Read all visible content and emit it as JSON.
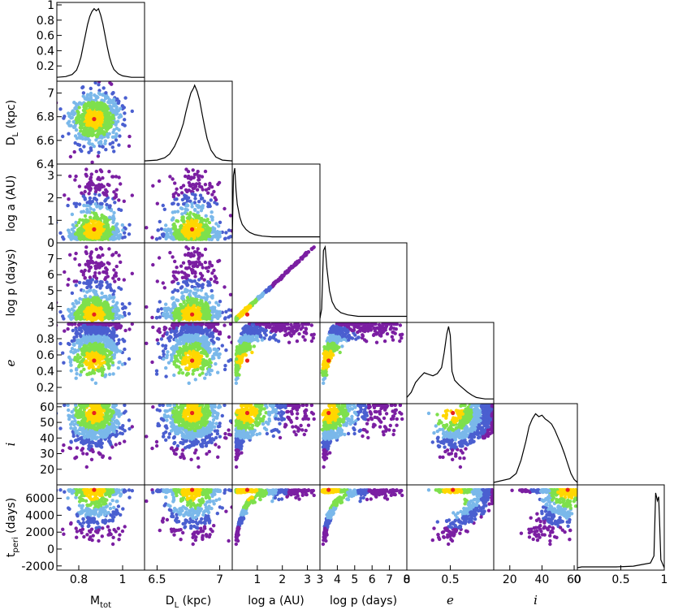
{
  "chart_data": {
    "type": "scatter",
    "layout": "corner",
    "parameters": [
      {
        "key": "mtot",
        "xlabel": "M",
        "xlabel_sub": "tot",
        "ylabel": "",
        "range": [
          0.7,
          1.1
        ],
        "ticks": [
          "0.8",
          "1"
        ],
        "tick_values": [
          0.8,
          1.0
        ]
      },
      {
        "key": "dl",
        "xlabel": "D",
        "xlabel_sub": "L",
        "xlabel_tail": " (kpc)",
        "ylabel": "D",
        "ylabel_sub": "L",
        "ylabel_tail": " (kpc)",
        "range": [
          6.4,
          7.1
        ],
        "xticks": [
          "6.5",
          "7"
        ],
        "xtick_values": [
          6.5,
          7.0
        ],
        "yticks": [
          "6.4",
          "6.6",
          "6.8",
          "7"
        ],
        "ytick_values": [
          6.4,
          6.6,
          6.8,
          7.0
        ]
      },
      {
        "key": "loga",
        "xlabel": "log a (AU)",
        "ylabel": "log a (AU)",
        "range": [
          0,
          3.5
        ],
        "xticks": [
          "1",
          "2",
          "3"
        ],
        "xtick_values": [
          1,
          2,
          3
        ],
        "yticks": [
          "0",
          "1",
          "2",
          "3"
        ],
        "ytick_values": [
          0,
          1,
          2,
          3
        ]
      },
      {
        "key": "logp",
        "xlabel": "log p (days)",
        "ylabel": "log p (days)",
        "range": [
          3,
          8
        ],
        "xticks": [
          "3",
          "4",
          "5",
          "6",
          "7",
          "8"
        ],
        "xtick_values": [
          3,
          4,
          5,
          6,
          7,
          8
        ],
        "yticks": [
          "3",
          "4",
          "5",
          "6",
          "7"
        ],
        "ytick_values": [
          3,
          4,
          5,
          6,
          7
        ]
      },
      {
        "key": "e",
        "xlabel": "e",
        "ylabel": "e",
        "range": [
          0,
          1
        ],
        "xticks": [
          "0",
          "0.5"
        ],
        "xtick_values": [
          0,
          0.5
        ],
        "yticks": [
          "0.2",
          "0.4",
          "0.6",
          "0.8"
        ],
        "ytick_values": [
          0.2,
          0.4,
          0.6,
          0.8
        ]
      },
      {
        "key": "i",
        "xlabel": "i",
        "ylabel": "i",
        "range": [
          10,
          62
        ],
        "xticks": [
          "20",
          "40",
          "60"
        ],
        "xtick_values": [
          20,
          40,
          60
        ],
        "yticks": [
          "20",
          "30",
          "40",
          "50",
          "60"
        ],
        "ytick_values": [
          20,
          30,
          40,
          50,
          60
        ]
      },
      {
        "key": "tperi",
        "xlabel": "",
        "ylabel": "t",
        "ylabel_sub": "peri",
        "ylabel_tail": " (days)",
        "range": [
          -2500,
          7600
        ],
        "yticks": [
          "-2000",
          "0",
          "2000",
          "4000",
          "6000"
        ],
        "ytick_values": [
          -2000,
          0,
          2000,
          4000,
          6000
        ]
      }
    ],
    "top_hist_yticks": [
      "0.2",
      "0.4",
      "0.6",
      "0.8",
      "1"
    ],
    "top_hist_ytick_values": [
      0.2,
      0.4,
      0.6,
      0.8,
      1.0
    ],
    "last_hist_xticks": [
      "0",
      "0.5",
      "1"
    ],
    "last_hist_xtick_values": [
      0,
      0.5,
      1
    ],
    "best_fit": {
      "mtot": 0.87,
      "dl": 6.78,
      "loga": 0.6,
      "logp": 3.5,
      "e": 0.53,
      "i": 56,
      "tperi": 7000
    },
    "color_levels": [
      "#7b1fa2",
      "#4a5fd0",
      "#7ab8ea",
      "#7ee04c",
      "#ffd700"
    ],
    "best_fit_color": "#e8231e",
    "histograms": {
      "mtot": [
        [
          0.7,
          0.02
        ],
        [
          0.74,
          0.03
        ],
        [
          0.77,
          0.06
        ],
        [
          0.79,
          0.12
        ],
        [
          0.8,
          0.2
        ],
        [
          0.81,
          0.3
        ],
        [
          0.82,
          0.45
        ],
        [
          0.83,
          0.6
        ],
        [
          0.84,
          0.75
        ],
        [
          0.85,
          0.86
        ],
        [
          0.86,
          0.93
        ],
        [
          0.87,
          0.97
        ],
        [
          0.88,
          0.94
        ],
        [
          0.89,
          0.97
        ],
        [
          0.9,
          0.88
        ],
        [
          0.91,
          0.76
        ],
        [
          0.92,
          0.6
        ],
        [
          0.93,
          0.44
        ],
        [
          0.94,
          0.3
        ],
        [
          0.95,
          0.2
        ],
        [
          0.96,
          0.13
        ],
        [
          0.98,
          0.07
        ],
        [
          1.0,
          0.04
        ],
        [
          1.04,
          0.02
        ],
        [
          1.1,
          0.02
        ]
      ],
      "dl": [
        [
          6.4,
          0.01
        ],
        [
          6.5,
          0.02
        ],
        [
          6.56,
          0.05
        ],
        [
          6.6,
          0.1
        ],
        [
          6.64,
          0.2
        ],
        [
          6.68,
          0.35
        ],
        [
          6.71,
          0.5
        ],
        [
          6.73,
          0.65
        ],
        [
          6.75,
          0.78
        ],
        [
          6.77,
          0.9
        ],
        [
          6.79,
          0.96
        ],
        [
          6.8,
          1.0
        ],
        [
          6.82,
          0.92
        ],
        [
          6.84,
          0.8
        ],
        [
          6.86,
          0.62
        ],
        [
          6.88,
          0.45
        ],
        [
          6.9,
          0.3
        ],
        [
          6.93,
          0.15
        ],
        [
          6.97,
          0.06
        ],
        [
          7.02,
          0.02
        ],
        [
          7.1,
          0.01
        ]
      ],
      "loga": [
        [
          0.0,
          0.02
        ],
        [
          0.05,
          0.9
        ],
        [
          0.1,
          1.0
        ],
        [
          0.15,
          0.7
        ],
        [
          0.2,
          0.5
        ],
        [
          0.3,
          0.32
        ],
        [
          0.4,
          0.22
        ],
        [
          0.55,
          0.15
        ],
        [
          0.7,
          0.11
        ],
        [
          0.9,
          0.08
        ],
        [
          1.2,
          0.06
        ],
        [
          1.6,
          0.05
        ],
        [
          2.2,
          0.05
        ],
        [
          3.0,
          0.05
        ],
        [
          3.5,
          0.05
        ]
      ],
      "logp": [
        [
          3.0,
          0.02
        ],
        [
          3.1,
          0.15
        ],
        [
          3.2,
          0.95
        ],
        [
          3.3,
          1.0
        ],
        [
          3.4,
          0.7
        ],
        [
          3.55,
          0.4
        ],
        [
          3.7,
          0.25
        ],
        [
          3.9,
          0.16
        ],
        [
          4.2,
          0.1
        ],
        [
          4.6,
          0.07
        ],
        [
          5.2,
          0.05
        ],
        [
          6.0,
          0.05
        ],
        [
          7.0,
          0.05
        ],
        [
          8.0,
          0.05
        ]
      ],
      "e": [
        [
          0.0,
          0.05
        ],
        [
          0.05,
          0.12
        ],
        [
          0.1,
          0.25
        ],
        [
          0.15,
          0.32
        ],
        [
          0.2,
          0.38
        ],
        [
          0.25,
          0.36
        ],
        [
          0.3,
          0.34
        ],
        [
          0.35,
          0.37
        ],
        [
          0.4,
          0.45
        ],
        [
          0.43,
          0.65
        ],
        [
          0.46,
          0.9
        ],
        [
          0.48,
          1.0
        ],
        [
          0.5,
          0.88
        ],
        [
          0.52,
          0.4
        ],
        [
          0.55,
          0.28
        ],
        [
          0.6,
          0.22
        ],
        [
          0.65,
          0.17
        ],
        [
          0.7,
          0.12
        ],
        [
          0.75,
          0.08
        ],
        [
          0.8,
          0.05
        ],
        [
          0.85,
          0.04
        ],
        [
          0.9,
          0.03
        ],
        [
          1.0,
          0.03
        ]
      ],
      "i": [
        [
          10,
          0.0
        ],
        [
          20,
          0.05
        ],
        [
          24,
          0.12
        ],
        [
          27,
          0.3
        ],
        [
          30,
          0.55
        ],
        [
          32,
          0.75
        ],
        [
          34,
          0.85
        ],
        [
          36,
          0.92
        ],
        [
          38,
          0.88
        ],
        [
          40,
          0.9
        ],
        [
          42,
          0.85
        ],
        [
          44,
          0.82
        ],
        [
          46,
          0.78
        ],
        [
          48,
          0.7
        ],
        [
          50,
          0.6
        ],
        [
          52,
          0.5
        ],
        [
          54,
          0.38
        ],
        [
          56,
          0.25
        ],
        [
          58,
          0.12
        ],
        [
          60,
          0.04
        ],
        [
          62,
          0.0
        ]
      ],
      "tperi": [
        [
          -2500,
          0.0
        ],
        [
          -2000,
          0.01
        ],
        [
          0,
          0.01
        ],
        [
          2000,
          0.01
        ],
        [
          4000,
          0.02
        ],
        [
          5000,
          0.04
        ],
        [
          6000,
          0.06
        ],
        [
          6400,
          0.15
        ],
        [
          6600,
          0.95
        ],
        [
          6800,
          0.85
        ],
        [
          6950,
          0.9
        ],
        [
          7050,
          0.6
        ],
        [
          7200,
          0.1
        ],
        [
          7600,
          0.0
        ]
      ]
    }
  }
}
